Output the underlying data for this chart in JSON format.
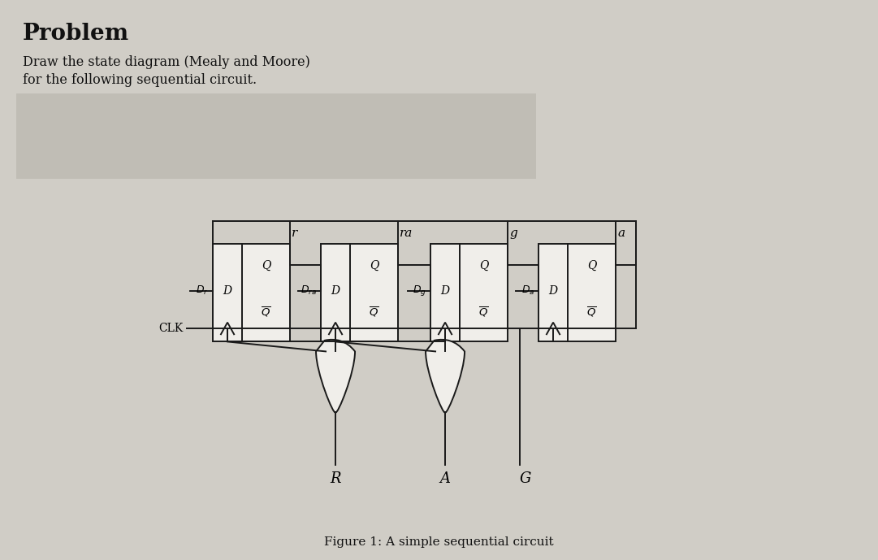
{
  "bg_color": "#d0cdc6",
  "panel_color": "#c4c0b8",
  "title": "Problem",
  "subtitle_line1": "Draw the state diagram (Mealy and Moore)",
  "subtitle_line2": "for the following sequential circuit.",
  "caption": "Figure 1: A simple sequential circuit",
  "ff_labels": [
    "r",
    "ra",
    "g",
    "a"
  ],
  "clk_label": "CLK",
  "output_labels": [
    "R",
    "A",
    "G"
  ],
  "lw": 1.4
}
